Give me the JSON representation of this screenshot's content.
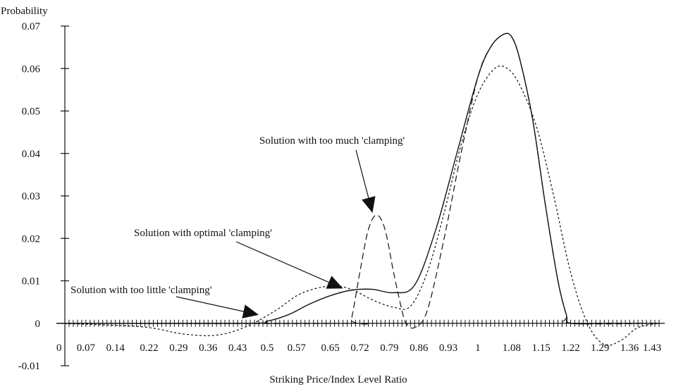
{
  "chart_data": {
    "type": "line",
    "title": "",
    "ylabel": "Probability",
    "xlabel": "Striking Price/Index Level Ratio",
    "xlim": [
      0,
      1.43
    ],
    "ylim": [
      -0.01,
      0.07
    ],
    "y_ticks": [
      -0.01,
      0,
      0.01,
      0.02,
      0.03,
      0.04,
      0.05,
      0.06,
      0.07
    ],
    "y_tick_labels": [
      "-0.01",
      "0",
      "0.01",
      "0.02",
      "0.03",
      "0.04",
      "0.05",
      "0.06",
      "0.07"
    ],
    "x_tick_labels": [
      {
        "value": 0,
        "label": "0"
      },
      {
        "value": 0.07,
        "label": "0.07"
      },
      {
        "value": 0.14,
        "label": "0.14"
      },
      {
        "value": 0.22,
        "label": "0.22"
      },
      {
        "value": 0.29,
        "label": "0.29"
      },
      {
        "value": 0.36,
        "label": "0.36"
      },
      {
        "value": 0.43,
        "label": "0.43"
      },
      {
        "value": 0.5,
        "label": "0.5"
      },
      {
        "value": 0.57,
        "label": "0.57"
      },
      {
        "value": 0.65,
        "label": "0.65"
      },
      {
        "value": 0.72,
        "label": "0.72"
      },
      {
        "value": 0.79,
        "label": "0.79"
      },
      {
        "value": 0.86,
        "label": "0.86"
      },
      {
        "value": 0.93,
        "label": "0.93"
      },
      {
        "value": 1.0,
        "label": "1"
      },
      {
        "value": 1.08,
        "label": "1.08"
      },
      {
        "value": 1.15,
        "label": "1.15"
      },
      {
        "value": 1.22,
        "label": "1.22"
      },
      {
        "value": 1.29,
        "label": "1.29"
      },
      {
        "value": 1.36,
        "label": "1.36"
      },
      {
        "value": 1.43,
        "label": "1.43"
      }
    ],
    "minor_tick_step": 0.01,
    "grid": false,
    "legend": "none",
    "series": [
      {
        "key": "optimal",
        "style": "solid",
        "x": [
          0,
          0.45,
          0.5,
          0.55,
          0.6,
          0.65,
          0.7,
          0.75,
          0.8,
          0.85,
          0.9,
          0.95,
          1.0,
          1.03,
          1.06,
          1.08,
          1.1,
          1.13,
          1.16,
          1.19,
          1.21,
          1.22,
          1.3,
          1.43
        ],
        "y": [
          0,
          0,
          0.0005,
          0.002,
          0.0045,
          0.0065,
          0.0078,
          0.008,
          0.0072,
          0.009,
          0.022,
          0.04,
          0.058,
          0.065,
          0.068,
          0.0675,
          0.062,
          0.048,
          0.028,
          0.01,
          0.002,
          0,
          0,
          0
        ]
      },
      {
        "key": "too_much",
        "style": "long-dash",
        "x": [
          0,
          0.69,
          0.7,
          0.72,
          0.74,
          0.76,
          0.78,
          0.8,
          0.82,
          0.83,
          0.85,
          0.88,
          0.92,
          0.96,
          1.0,
          1.03,
          1.06,
          1.08,
          1.1,
          1.13,
          1.16,
          1.19,
          1.21,
          1.22,
          1.43
        ],
        "y": [
          0,
          0,
          0.001,
          0.012,
          0.022,
          0.0255,
          0.022,
          0.012,
          0.003,
          0,
          -0.001,
          0.003,
          0.02,
          0.04,
          0.058,
          0.065,
          0.068,
          0.0675,
          0.062,
          0.048,
          0.028,
          0.01,
          0.002,
          0,
          0
        ]
      },
      {
        "key": "too_little",
        "style": "short-dash",
        "x": [
          0,
          0.2,
          0.3,
          0.38,
          0.45,
          0.52,
          0.58,
          0.65,
          0.7,
          0.75,
          0.8,
          0.84,
          0.88,
          0.92,
          0.96,
          1.0,
          1.04,
          1.07,
          1.1,
          1.14,
          1.18,
          1.22,
          1.26,
          1.3,
          1.34,
          1.38,
          1.43
        ],
        "y": [
          0,
          -0.0008,
          -0.0025,
          -0.0028,
          -0.0008,
          0.003,
          0.007,
          0.0088,
          0.008,
          0.0055,
          0.0038,
          0.004,
          0.012,
          0.026,
          0.042,
          0.054,
          0.06,
          0.06,
          0.056,
          0.046,
          0.03,
          0.012,
          0.0,
          -0.005,
          -0.004,
          -0.001,
          0
        ]
      }
    ],
    "annotations": [
      {
        "text": "Solution with too much 'clamping'",
        "arrow_to": [
          0.75,
          0.026
        ]
      },
      {
        "text": "Solution with optimal 'clamping'",
        "arrow_to": [
          0.68,
          0.0082
        ]
      },
      {
        "text": "Solution with too little 'clamping'",
        "arrow_to": [
          0.48,
          0.002
        ]
      }
    ]
  }
}
